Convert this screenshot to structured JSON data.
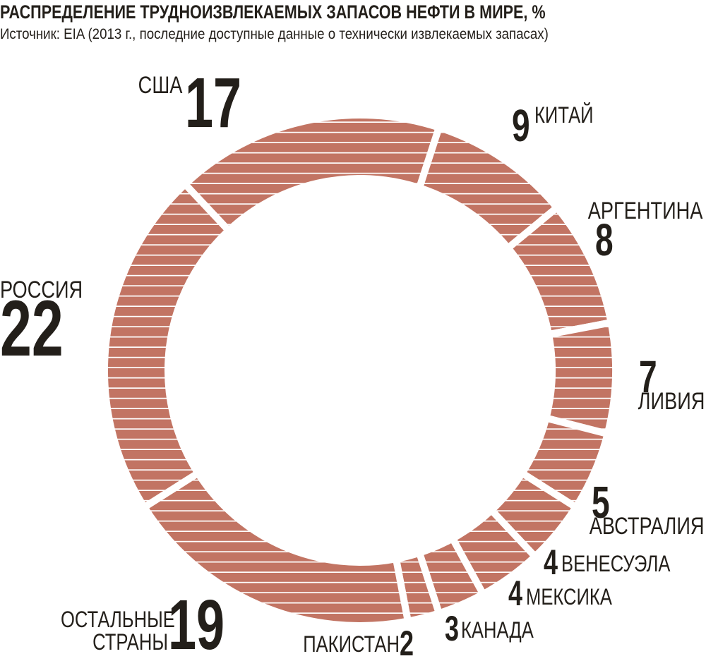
{
  "chart_data": {
    "type": "donut",
    "title": "РАСПРЕДЕЛЕНИЕ ТРУДНОИЗВЛЕКАЕМЫХ ЗАПАСОВ НЕФТИ В МИРЕ, %",
    "subtitle": "Источник: EIA (2013 г., последние доступные данные о технически извлекаемых запасах)",
    "categories": [
      "США",
      "КИТАЙ",
      "АРГЕНТИНА",
      "ЛИВИЯ",
      "АВСТРАЛИЯ",
      "ВЕНЕСУЭЛА",
      "МЕКСИКА",
      "КАНАДА",
      "ПАКИСТАН",
      "ОСТАЛЬНЫЕ СТРАНЫ",
      "РОССИЯ"
    ],
    "values": [
      17,
      9,
      8,
      7,
      5,
      4,
      4,
      3,
      2,
      19,
      22
    ],
    "color": "#c27463"
  }
}
